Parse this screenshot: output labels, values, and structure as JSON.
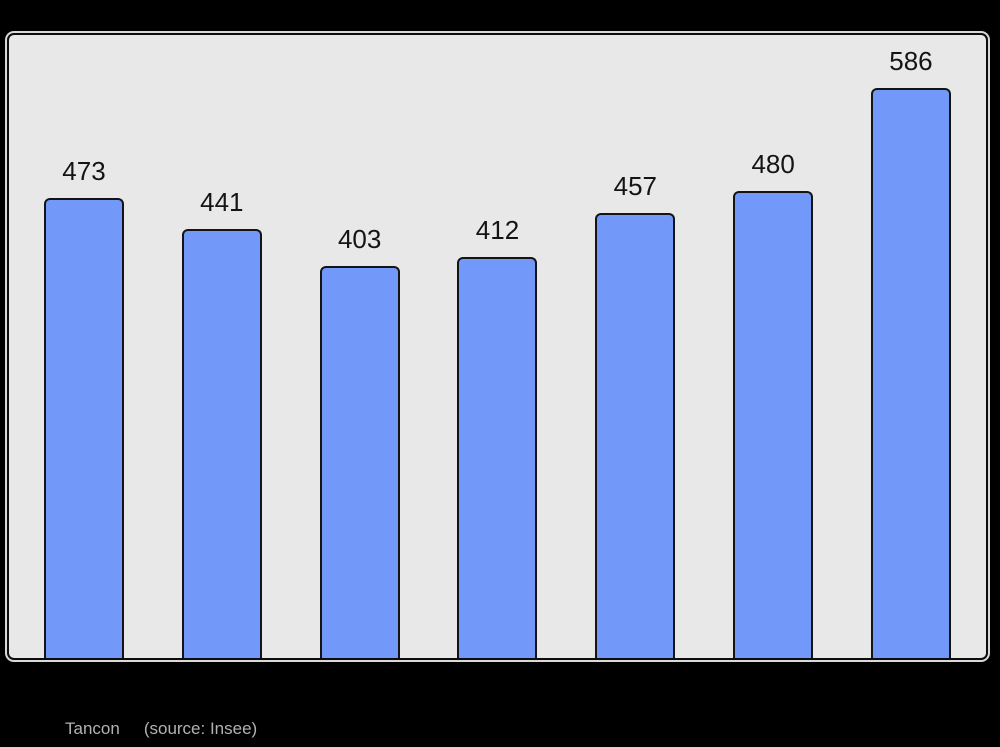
{
  "page": {
    "background": "#000000"
  },
  "chart_data": {
    "type": "bar",
    "values": [
      473,
      441,
      403,
      412,
      457,
      480,
      586
    ],
    "title": "",
    "xlabel": "",
    "ylabel": "",
    "ylim": [
      0,
      640
    ],
    "grid": false,
    "legend": false,
    "data_labels_shown": true,
    "bar_color": "#7299FA",
    "bar_border_color": "#141414",
    "plot_background": "#e8e8e8",
    "frame_border_color": "#0d0d0d",
    "label_color": "#141414"
  },
  "caption": {
    "commune": "Tancon",
    "source": "(source: Insee)",
    "color": "#b2b2b2"
  }
}
